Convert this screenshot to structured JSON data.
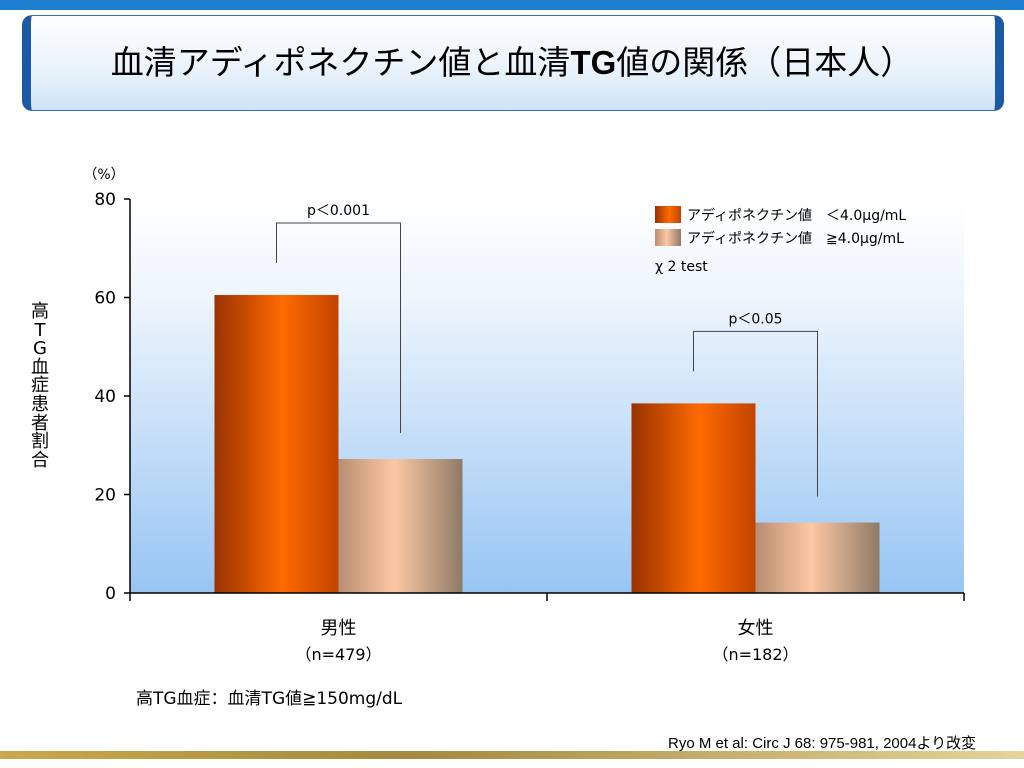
{
  "title": {
    "part1": "血清アディポネクチン値と血清",
    "part2": "TG",
    "part3": "値の関係（日本人）"
  },
  "chart_data": {
    "type": "bar",
    "unit_label": "（%）",
    "ylabel": "高TG血症患者割合",
    "ylim": [
      0,
      80
    ],
    "yticks": [
      0,
      20,
      40,
      60,
      80
    ],
    "categories": [
      {
        "label": "男性",
        "sublabel": "（n=479）"
      },
      {
        "label": "女性",
        "sublabel": "（n=182）"
      }
    ],
    "series": [
      {
        "name": "アディポネクチン値　＜4.0μg/mL",
        "color": "#f05a00",
        "values": [
          60.5,
          38.5
        ]
      },
      {
        "name": "アディポネクチン値　≧4.0μg/mL",
        "color": "#f6b58c",
        "values": [
          27.2,
          14.3
        ]
      }
    ],
    "significance": [
      {
        "label": "p＜0.001",
        "category": 0
      },
      {
        "label": "p＜0.05",
        "category": 1
      }
    ],
    "test_label": "χ 2 test",
    "grid": false,
    "legend_position": "top-right"
  },
  "note": "高TG血症：血清TG値≧150mg/dL",
  "source": "Ryo M et al: Circ J 68: 975-981, 2004より改変"
}
